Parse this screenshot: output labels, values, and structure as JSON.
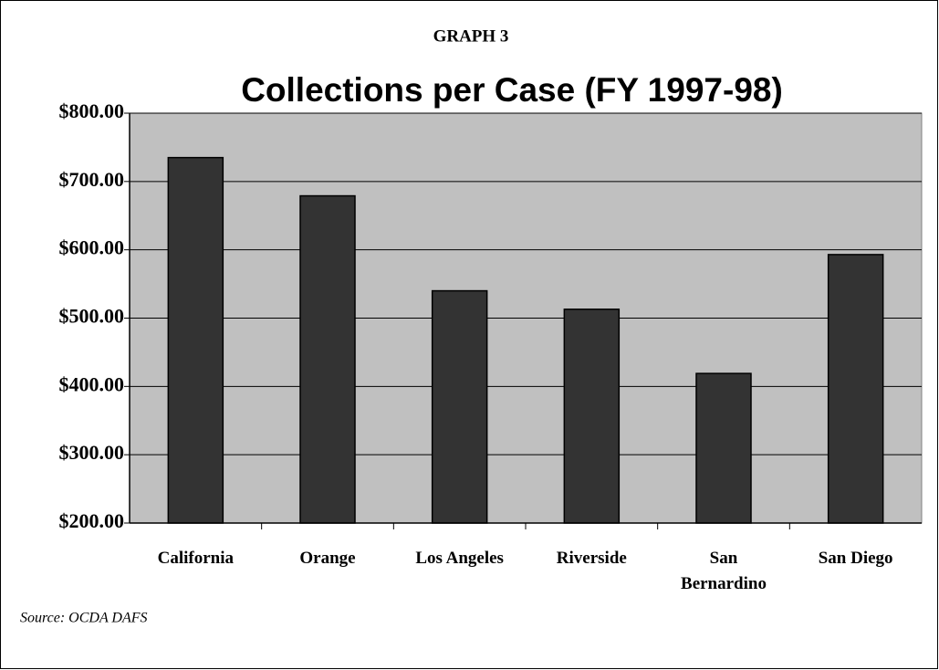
{
  "chart_data": {
    "type": "bar",
    "subtitle": "GRAPH 3",
    "title": "Collections per Case (FY 1997-98)",
    "source": "Source: OCDA DAFS",
    "categories": [
      "California",
      "Orange",
      "Los Angeles",
      "Riverside",
      "San Bernardino",
      "San Diego"
    ],
    "values": [
      735,
      679,
      540,
      513,
      419,
      593
    ],
    "color": "#333333",
    "ylim": [
      200,
      800
    ],
    "yticks": [
      {
        "value": 200,
        "label": "$200.00"
      },
      {
        "value": 300,
        "label": "$300.00"
      },
      {
        "value": 400,
        "label": "$400.00"
      },
      {
        "value": 500,
        "label": "$500.00"
      },
      {
        "value": 600,
        "label": "$600.00"
      },
      {
        "value": 700,
        "label": "$700.00"
      },
      {
        "value": 800,
        "label": "$800.00"
      }
    ],
    "grid": true
  }
}
